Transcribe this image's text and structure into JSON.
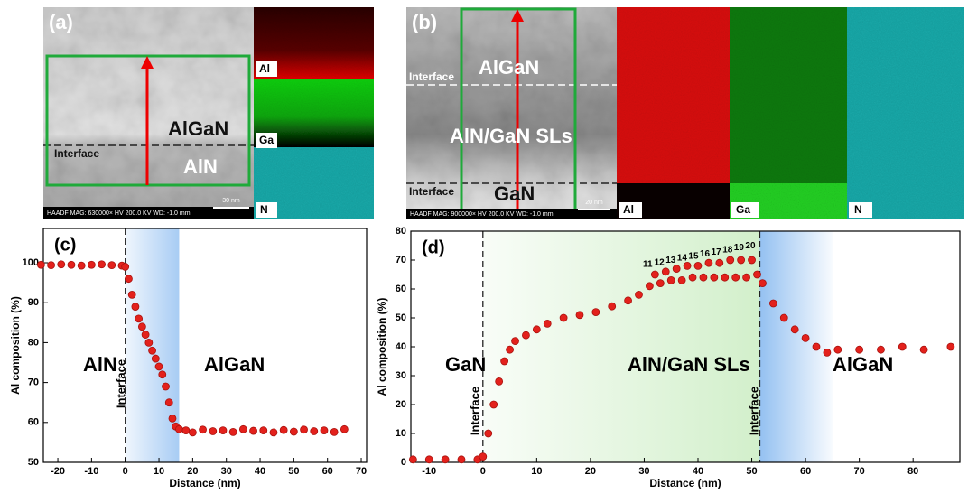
{
  "panels": {
    "a": {
      "label": "(a)",
      "layer_top": "AlGaN",
      "layer_bottom": "AlN",
      "interface": "Interface",
      "scale": "30 nm",
      "info": "HAADF MAG: 630000× HV 200.0 KV WD: -1.0 mm",
      "maps": [
        "Al",
        "Ga",
        "N"
      ]
    },
    "b": {
      "label": "(b)",
      "layer_top": "AlGaN",
      "interface_top": "Interface",
      "layer_middle": "AlN/GaN SLs",
      "interface_bottom": "Interface",
      "layer_bottom": "GaN",
      "scale": "20 nm",
      "info": "HAADF MAG: 900000× HV 200.0 KV WD: -1.0 mm",
      "maps": [
        "Al",
        "Ga",
        "N"
      ]
    }
  },
  "chart_data": [
    {
      "type": "scatter",
      "panel_label": "(c)",
      "x_label": "Distance (nm)",
      "y_label": "Al composition (%)",
      "x": [
        -25,
        -22,
        -19,
        -16,
        -13,
        -10,
        -7,
        -4,
        -1,
        0,
        1,
        2,
        3,
        4,
        5,
        6,
        7,
        8,
        9,
        10,
        11,
        12,
        13,
        14,
        15,
        16,
        18,
        20,
        23,
        26,
        29,
        32,
        35,
        38,
        41,
        44,
        47,
        50,
        53,
        56,
        59,
        62,
        65
      ],
      "values": [
        99.5,
        99.4,
        99.6,
        99.5,
        99.3,
        99.5,
        99.6,
        99.4,
        99.3,
        99,
        96,
        92,
        89,
        86,
        84,
        82,
        80,
        78,
        76,
        74,
        72,
        69,
        65,
        61,
        59,
        58.3,
        58,
        57.5,
        58.2,
        57.8,
        58,
        57.6,
        58.3,
        57.9,
        58,
        57.5,
        58.1,
        57.7,
        58.2,
        57.8,
        58,
        57.6,
        58.3
      ],
      "color": "#e3211c",
      "xlim": [
        -24.3,
        71.6
      ],
      "xticks": [
        -20,
        -10,
        0,
        10,
        20,
        30,
        40,
        50,
        60,
        70
      ],
      "ylim": [
        50,
        108.6
      ],
      "yticks": [
        50,
        60,
        70,
        80,
        90,
        100
      ],
      "regions": [
        {
          "x": [
            0,
            16
          ],
          "color": "#3d8ee6"
        }
      ],
      "vlines": [
        0
      ],
      "annotations": [
        "AlN",
        "AlGaN",
        "Interface"
      ]
    },
    {
      "type": "scatter",
      "panel_label": "(d)",
      "x_label": "Distance (nm)",
      "y_label": "Al composition (%)",
      "x": [
        -13,
        -10,
        -7,
        -4,
        -1,
        0,
        1,
        2,
        3,
        4,
        5,
        6,
        8,
        10,
        12,
        15,
        18,
        21,
        24,
        27,
        29,
        31,
        32,
        33,
        34,
        35,
        36,
        37,
        38,
        39,
        40,
        41,
        42,
        43,
        44,
        45,
        46,
        47,
        48,
        49,
        50,
        51,
        52,
        54,
        56,
        58,
        60,
        62,
        64,
        66,
        70,
        74,
        78,
        82,
        87
      ],
      "values": [
        1,
        1,
        1,
        1,
        1,
        2,
        10,
        20,
        28,
        35,
        39,
        42,
        44,
        46,
        48,
        50,
        51,
        52,
        54,
        56,
        58,
        61,
        65,
        62,
        66,
        63,
        67,
        63,
        68,
        64,
        68,
        64,
        69,
        64,
        69,
        64,
        70,
        64,
        70,
        64,
        70,
        65,
        62,
        55,
        50,
        46,
        43,
        40,
        38,
        39,
        39,
        39,
        40,
        39,
        40
      ],
      "color": "#e3211c",
      "xlim": [
        -13.4,
        88.7
      ],
      "xticks": [
        -10,
        0,
        10,
        20,
        30,
        40,
        50,
        60,
        70,
        80
      ],
      "ylim": [
        0,
        80
      ],
      "yticks": [
        0,
        10,
        20,
        30,
        40,
        50,
        60,
        70,
        80
      ],
      "regions": [
        {
          "x": [
            0,
            51.5
          ],
          "color": "#7fd36a"
        },
        {
          "x": [
            51.5,
            65
          ],
          "color": "#3d8ee6"
        }
      ],
      "vlines": [
        0,
        51.5
      ],
      "annotations": [
        "GaN",
        "AlN/GaN SLs",
        "AlGaN",
        "Interface",
        "Interface"
      ],
      "peak_labels": [
        "11",
        "12",
        "13",
        "14",
        "15",
        "16",
        "17",
        "18",
        "19",
        "20"
      ]
    }
  ]
}
